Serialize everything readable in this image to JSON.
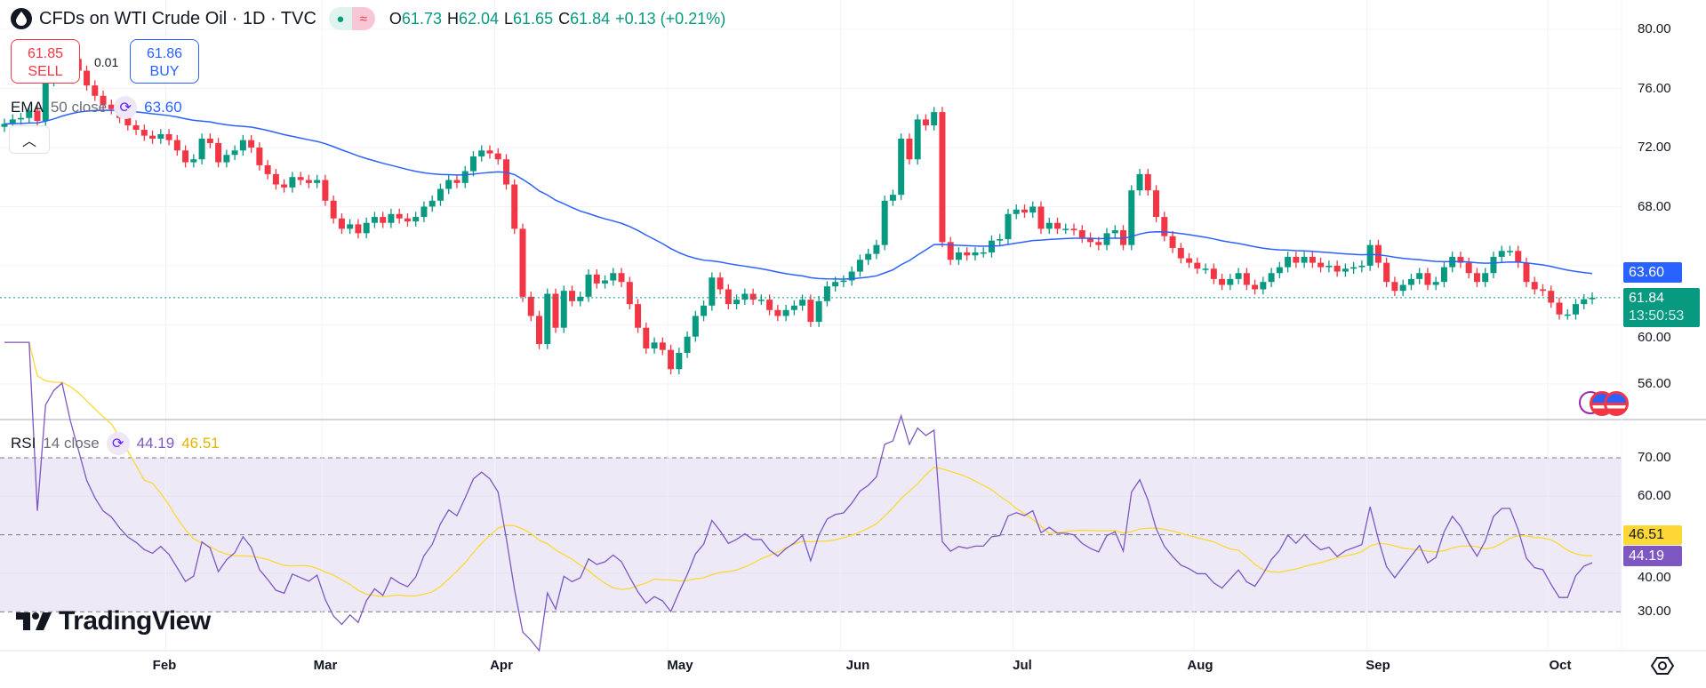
{
  "header": {
    "title": "CFDs on WTI Crude Oil · 1D · TVC",
    "symbol_icon": "oil-drop-icon",
    "market_status_icon": "green-dot-icon",
    "data_status_icon": "approx-icon",
    "ohlc": {
      "o_label": "O",
      "o": "61.73",
      "h_label": "H",
      "h": "62.04",
      "l_label": "L",
      "l": "61.65",
      "c_label": "C",
      "c": "61.84",
      "change": "+0.13 (+0.21%)"
    }
  },
  "trade": {
    "sell_price": "61.85",
    "sell_label": "SELL",
    "spread": "0.01",
    "buy_price": "61.86",
    "buy_label": "BUY"
  },
  "ema_legend": {
    "name": "EMA",
    "params": "50 close",
    "value": "63.60"
  },
  "rsi_legend": {
    "name": "RSI",
    "params": "14 close",
    "value": "44.19",
    "ma_value": "46.51"
  },
  "collapse_icon": "chevron-up-icon",
  "price_axis": [
    "80.00",
    "76.00",
    "72.00",
    "68.00",
    "60.00",
    "56.00"
  ],
  "rsi_axis": [
    "70.00",
    "60.00",
    "40.00",
    "30.00"
  ],
  "badges": {
    "ema": "63.60",
    "last_price": "61.84",
    "countdown": "13:50:53",
    "rsi_ma": "46.51",
    "rsi": "44.19"
  },
  "months": [
    "Feb",
    "Mar",
    "Apr",
    "May",
    "Jun",
    "Jul",
    "Aug",
    "Sep",
    "Oct"
  ],
  "brand": "TradingView",
  "colors": {
    "up": "#089981",
    "down": "#f23645",
    "ema": "#2962ff",
    "rsi": "#7e57c2",
    "rsi_ma": "#fdd835",
    "rsi_band": "#ede9f7"
  },
  "chart_data": {
    "type": "candlestick",
    "interval": "1D",
    "price_range": [
      54,
      82
    ],
    "rsi_range": [
      20,
      80
    ],
    "first_open": 73.4,
    "closes": [
      73.6,
      73.9,
      74.0,
      74.5,
      73.8,
      76.5,
      77.8,
      78.8,
      78.0,
      77.2,
      76.2,
      75.5,
      74.9,
      74.6,
      74.0,
      73.5,
      73.2,
      72.8,
      72.6,
      72.9,
      72.5,
      71.8,
      71.0,
      71.2,
      72.6,
      72.3,
      71.0,
      71.5,
      71.8,
      72.5,
      72.0,
      70.8,
      70.2,
      69.5,
      69.3,
      70.0,
      69.8,
      69.6,
      69.8,
      68.4,
      67.2,
      66.5,
      66.8,
      66.2,
      66.9,
      67.3,
      66.9,
      67.5,
      67.2,
      67.0,
      67.3,
      68.0,
      68.4,
      69.2,
      69.8,
      69.6,
      70.4,
      71.4,
      71.8,
      71.6,
      71.2,
      69.5,
      66.5,
      61.9,
      60.6,
      58.7,
      62.1,
      59.8,
      62.3,
      61.6,
      61.9,
      63.4,
      62.8,
      63.0,
      63.5,
      62.9,
      61.4,
      59.8,
      58.4,
      58.8,
      58.3,
      57.0,
      58.1,
      59.2,
      60.6,
      61.3,
      63.2,
      62.4,
      61.4,
      61.7,
      62.1,
      61.7,
      61.7,
      61.0,
      60.6,
      61.0,
      61.3,
      61.7,
      60.2,
      61.6,
      62.6,
      62.9,
      63.0,
      63.6,
      64.4,
      64.8,
      65.4,
      68.4,
      68.8,
      72.6,
      71.2,
      73.9,
      73.5,
      74.4,
      65.6,
      64.4,
      64.9,
      64.7,
      64.9,
      64.9,
      65.7,
      65.8,
      67.5,
      67.8,
      67.6,
      68.0,
      66.5,
      66.9,
      66.5,
      66.5,
      66.4,
      65.9,
      65.6,
      65.4,
      66.2,
      66.4,
      65.4,
      69.1,
      70.2,
      69.1,
      67.3,
      66.0,
      65.2,
      64.5,
      64.2,
      63.8,
      63.8,
      63.1,
      62.7,
      63.1,
      63.5,
      62.7,
      62.4,
      62.9,
      63.5,
      63.9,
      64.6,
      64.2,
      64.6,
      64.2,
      63.9,
      64.0,
      63.6,
      63.8,
      63.9,
      64.0,
      65.4,
      64.2,
      62.9,
      62.3,
      62.7,
      63.1,
      63.5,
      62.7,
      62.9,
      63.9,
      64.6,
      64.2,
      63.5,
      62.9,
      63.5,
      64.6,
      65.0,
      65.0,
      64.2,
      62.9,
      62.4,
      62.3,
      61.5,
      60.7,
      60.7,
      61.4,
      61.73,
      61.84
    ],
    "month_starts": {
      "Feb": 20,
      "Mar": 39,
      "Apr": 60,
      "May": 81,
      "Jun": 102,
      "Jul": 123,
      "Aug": 145,
      "Sep": 166,
      "Oct": 188
    },
    "indicators": [
      {
        "name": "EMA 50 close",
        "last": 63.6
      },
      {
        "name": "RSI 14 close",
        "last": 44.19,
        "ma_last": 46.51,
        "levels": [
          70,
          50,
          30
        ]
      }
    ]
  }
}
